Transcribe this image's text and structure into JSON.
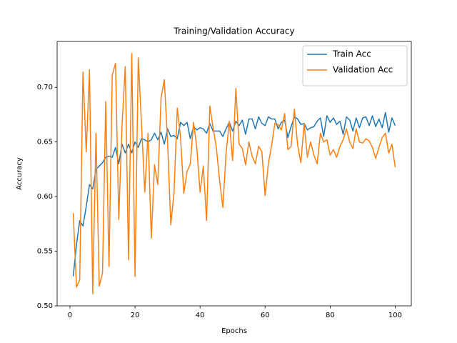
{
  "chart_data": {
    "type": "line",
    "title": "Training/Validation Accuracy",
    "x_label": "Epochs",
    "y_label": "Accuracy",
    "x": [
      1,
      2,
      3,
      4,
      5,
      6,
      7,
      8,
      9,
      10,
      11,
      12,
      13,
      14,
      15,
      16,
      17,
      18,
      19,
      20,
      21,
      22,
      23,
      24,
      25,
      26,
      27,
      28,
      29,
      30,
      31,
      32,
      33,
      34,
      35,
      36,
      37,
      38,
      39,
      40,
      41,
      42,
      43,
      44,
      45,
      46,
      47,
      48,
      49,
      50,
      51,
      52,
      53,
      54,
      55,
      56,
      57,
      58,
      59,
      60,
      61,
      62,
      63,
      64,
      65,
      66,
      67,
      68,
      69,
      70,
      71,
      72,
      73,
      74,
      75,
      76,
      77,
      78,
      79,
      80,
      81,
      82,
      83,
      84,
      85,
      86,
      87,
      88,
      89,
      90,
      91,
      92,
      93,
      94,
      95,
      96,
      97,
      98,
      99,
      100
    ],
    "series": [
      {
        "name": "Train Acc",
        "color": "#1f77b4",
        "values": [
          0.527,
          0.556,
          0.578,
          0.573,
          0.591,
          0.611,
          0.607,
          0.625,
          0.628,
          0.631,
          0.636,
          0.637,
          0.636,
          0.645,
          0.63,
          0.648,
          0.64,
          0.648,
          0.64,
          0.65,
          0.645,
          0.653,
          0.652,
          0.65,
          0.652,
          0.658,
          0.652,
          0.659,
          0.648,
          0.662,
          0.655,
          0.656,
          0.653,
          0.668,
          0.665,
          0.668,
          0.653,
          0.664,
          0.661,
          0.663,
          0.662,
          0.658,
          0.667,
          0.66,
          0.66,
          0.66,
          0.655,
          0.662,
          0.668,
          0.66,
          0.669,
          0.665,
          0.67,
          0.657,
          0.671,
          0.671,
          0.662,
          0.673,
          0.667,
          0.665,
          0.673,
          0.671,
          0.671,
          0.662,
          0.668,
          0.67,
          0.654,
          0.664,
          0.673,
          0.671,
          0.666,
          0.667,
          0.661,
          0.663,
          0.664,
          0.669,
          0.672,
          0.655,
          0.674,
          0.668,
          0.672,
          0.666,
          0.669,
          0.657,
          0.673,
          0.67,
          0.66,
          0.672,
          0.663,
          0.672,
          0.673,
          0.665,
          0.674,
          0.664,
          0.671,
          0.663,
          0.677,
          0.659,
          0.672,
          0.665
        ]
      },
      {
        "name": "Validation Acc",
        "color": "#ff7f0e",
        "values": [
          0.585,
          0.517,
          0.524,
          0.714,
          0.641,
          0.716,
          0.511,
          0.658,
          0.518,
          0.53,
          0.687,
          0.536,
          0.711,
          0.722,
          0.579,
          0.665,
          0.719,
          0.542,
          0.731,
          0.527,
          0.727,
          0.666,
          0.604,
          0.658,
          0.562,
          0.629,
          0.611,
          0.69,
          0.707,
          0.651,
          0.574,
          0.604,
          0.681,
          0.654,
          0.603,
          0.623,
          0.63,
          0.668,
          0.645,
          0.604,
          0.628,
          0.578,
          0.683,
          0.663,
          0.645,
          0.615,
          0.59,
          0.64,
          0.669,
          0.633,
          0.699,
          0.648,
          0.644,
          0.629,
          0.65,
          0.637,
          0.63,
          0.646,
          0.641,
          0.601,
          0.63,
          0.647,
          0.667,
          0.666,
          0.661,
          0.676,
          0.643,
          0.646,
          0.68,
          0.647,
          0.631,
          0.667,
          0.636,
          0.65,
          0.638,
          0.63,
          0.658,
          0.65,
          0.652,
          0.638,
          0.643,
          0.636,
          0.646,
          0.652,
          0.662,
          0.65,
          0.644,
          0.662,
          0.65,
          0.649,
          0.653,
          0.651,
          0.645,
          0.635,
          0.645,
          0.654,
          0.658,
          0.64,
          0.648,
          0.627
        ]
      }
    ],
    "xlim": [
      -3.95,
      104.95
    ],
    "ylim": [
      0.5,
      0.742
    ],
    "xticks": [
      0,
      20,
      40,
      60,
      80,
      100
    ],
    "yticks": [
      {
        "value": 0.5,
        "label": "0.50"
      },
      {
        "value": 0.55,
        "label": "0.55"
      },
      {
        "value": 0.6,
        "label": "0.60"
      },
      {
        "value": 0.65,
        "label": "0.65"
      },
      {
        "value": 0.7,
        "label": "0.70"
      }
    ],
    "legend": "upper right",
    "grid": false
  }
}
